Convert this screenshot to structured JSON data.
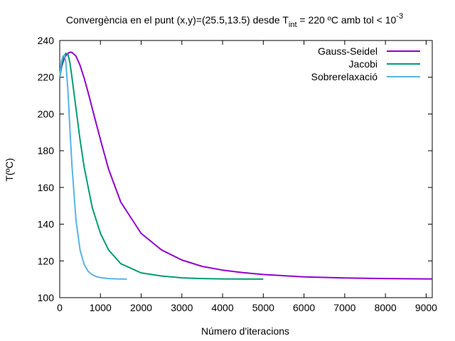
{
  "chart_data": {
    "type": "line",
    "title": {
      "prefix": "Convergència en el punt (x,y)=(25.5,13.5) desde T",
      "subscript": "int",
      "middle": " = 220 ºC amb tol < 10",
      "superscript": "-3"
    },
    "xlabel": "Número d'iteracions",
    "ylabel": "T(ºC)",
    "xlim": [
      0,
      9150
    ],
    "ylim": [
      100,
      240
    ],
    "xticks": [
      0,
      1000,
      2000,
      3000,
      4000,
      5000,
      6000,
      7000,
      8000,
      9000
    ],
    "yticks": [
      100,
      120,
      140,
      160,
      180,
      200,
      220,
      240
    ],
    "grid": false,
    "legend_position": "top-right",
    "series": [
      {
        "name": "Gauss-Seidel",
        "color": "#9400d3",
        "points": [
          [
            0,
            220
          ],
          [
            50,
            226
          ],
          [
            100,
            229.5
          ],
          [
            150,
            231.8
          ],
          [
            200,
            233
          ],
          [
            250,
            233.6
          ],
          [
            300,
            233.5
          ],
          [
            400,
            231.5
          ],
          [
            500,
            226.5
          ],
          [
            600,
            219.5
          ],
          [
            700,
            211.5
          ],
          [
            800,
            203
          ],
          [
            1000,
            186
          ],
          [
            1200,
            170
          ],
          [
            1500,
            152
          ],
          [
            2000,
            135
          ],
          [
            2500,
            126
          ],
          [
            3000,
            120.5
          ],
          [
            3500,
            117
          ],
          [
            4000,
            115
          ],
          [
            4500,
            113.6
          ],
          [
            5000,
            112.6
          ],
          [
            6000,
            111.3
          ],
          [
            7000,
            110.7
          ],
          [
            8000,
            110.4
          ],
          [
            9000,
            110.2
          ],
          [
            9150,
            110.2
          ]
        ]
      },
      {
        "name": "Jacobi",
        "color": "#009e73",
        "points": [
          [
            0,
            220
          ],
          [
            50,
            227
          ],
          [
            100,
            231.5
          ],
          [
            150,
            233
          ],
          [
            200,
            232.5
          ],
          [
            250,
            228
          ],
          [
            300,
            220
          ],
          [
            400,
            203
          ],
          [
            500,
            186
          ],
          [
            600,
            171
          ],
          [
            800,
            149
          ],
          [
            1000,
            135
          ],
          [
            1200,
            126
          ],
          [
            1500,
            118.5
          ],
          [
            2000,
            113.5
          ],
          [
            2500,
            111.8
          ],
          [
            3000,
            110.8
          ],
          [
            3500,
            110.4
          ],
          [
            4000,
            110.2
          ],
          [
            5000,
            110.1
          ]
        ]
      },
      {
        "name": "Sobrerelaxació",
        "color": "#56b4e9",
        "points": [
          [
            0,
            220
          ],
          [
            40,
            228.5
          ],
          [
            80,
            231.5
          ],
          [
            120,
            232
          ],
          [
            150,
            228
          ],
          [
            200,
            213
          ],
          [
            250,
            192
          ],
          [
            300,
            172
          ],
          [
            400,
            142
          ],
          [
            500,
            126
          ],
          [
            600,
            118
          ],
          [
            700,
            114.3
          ],
          [
            800,
            112.5
          ],
          [
            900,
            111.5
          ],
          [
            1000,
            110.9
          ],
          [
            1200,
            110.4
          ],
          [
            1400,
            110.2
          ],
          [
            1650,
            110.1
          ]
        ]
      }
    ]
  }
}
